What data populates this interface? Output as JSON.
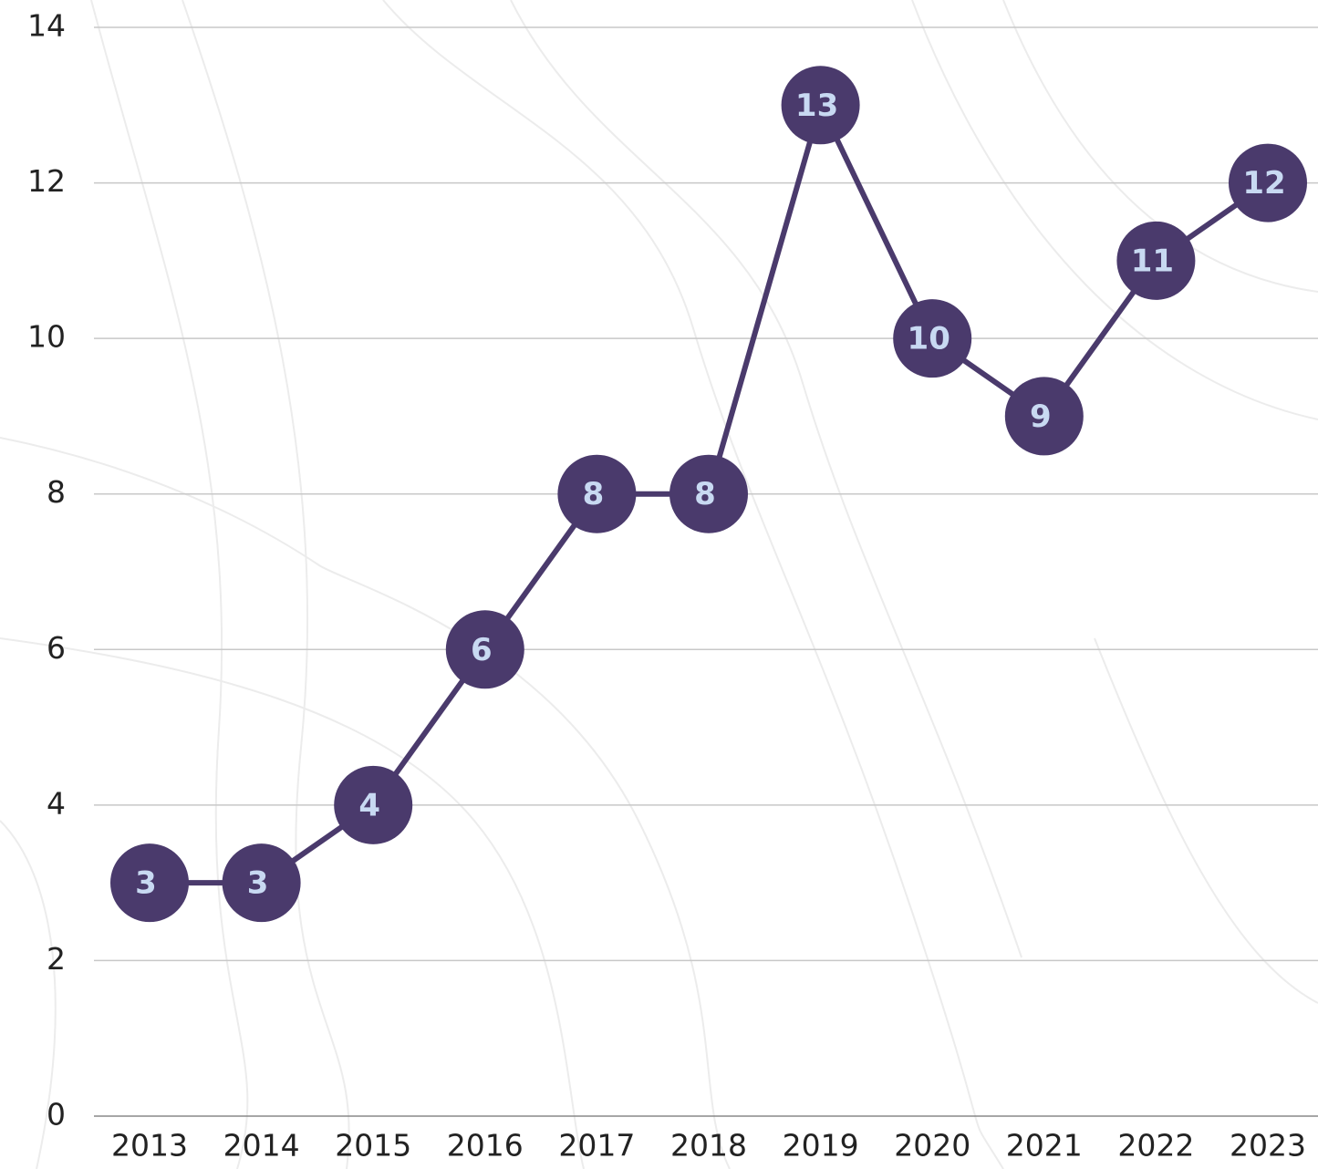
{
  "chart_data": {
    "type": "line",
    "categories": [
      "2013",
      "2014",
      "2015",
      "2016",
      "2017",
      "2018",
      "2019",
      "2020",
      "2021",
      "2022",
      "2023"
    ],
    "values": [
      3,
      3,
      4,
      6,
      8,
      8,
      13,
      10,
      9,
      11,
      12
    ],
    "color": "#4a3a6c",
    "label_color": "#c8d9f2",
    "ylim": [
      0,
      14
    ],
    "yticks": [
      0,
      2,
      4,
      6,
      8,
      10,
      12,
      14
    ],
    "grid": true
  }
}
